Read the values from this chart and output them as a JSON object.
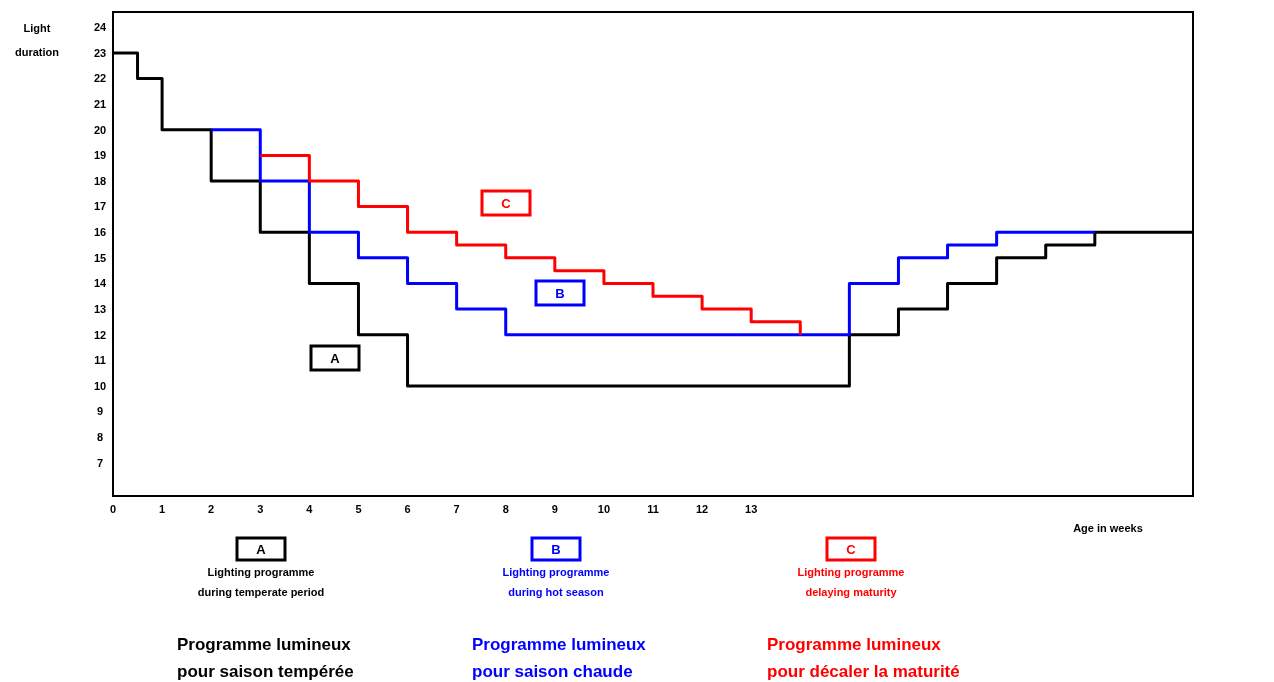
{
  "chart_data": {
    "type": "step",
    "xlabel": "Age in weeks",
    "ylabel": "Light duration",
    "xlim": [
      0,
      22
    ],
    "xticks": [
      0,
      1,
      2,
      3,
      4,
      5,
      6,
      7,
      8,
      9,
      10,
      11,
      12,
      13
    ],
    "ylim": [
      5.7,
      24.6
    ],
    "yticks": [
      7,
      8,
      9,
      10,
      11,
      12,
      13,
      14,
      15,
      16,
      17,
      18,
      19,
      20,
      21,
      22,
      23,
      24
    ],
    "grid": false,
    "legend": "bottom",
    "line_style": "solid",
    "marker": "none",
    "series": [
      {
        "name": "A",
        "color": "#000000",
        "x": [
          0,
          0.5,
          1,
          2,
          3,
          4,
          5,
          6,
          15,
          16,
          17,
          18,
          19,
          20,
          22
        ],
        "values": [
          23,
          22,
          20,
          18,
          16,
          14,
          12,
          10,
          12,
          13,
          14,
          15,
          15.5,
          16,
          16
        ]
      },
      {
        "name": "B",
        "color": "#0000ff",
        "x": [
          2,
          3,
          4,
          5,
          6,
          7,
          8,
          15,
          16,
          17,
          18,
          20
        ],
        "values": [
          20,
          18,
          16,
          15,
          14,
          13,
          12,
          14,
          15,
          15.5,
          16,
          16
        ]
      },
      {
        "name": "C",
        "color": "#ff0000",
        "x": [
          3,
          4,
          5,
          6,
          7,
          8,
          9,
          10,
          11,
          12,
          13,
          14
        ],
        "values": [
          19,
          18,
          17,
          16,
          15.5,
          15,
          14.5,
          14,
          13.5,
          13,
          12.5,
          12
        ]
      }
    ],
    "annotations": [
      "A",
      "B",
      "C",
      "Lighting programme",
      "during temperate period",
      "Programme lumineux",
      "pour saison tempérée",
      "Lighting programme",
      "during hot season",
      "Programme lumineux",
      "pour saison chaude",
      "Lighting programme",
      "delaying maturity",
      "Programme lumineux",
      "pour décaler la maturité"
    ]
  }
}
